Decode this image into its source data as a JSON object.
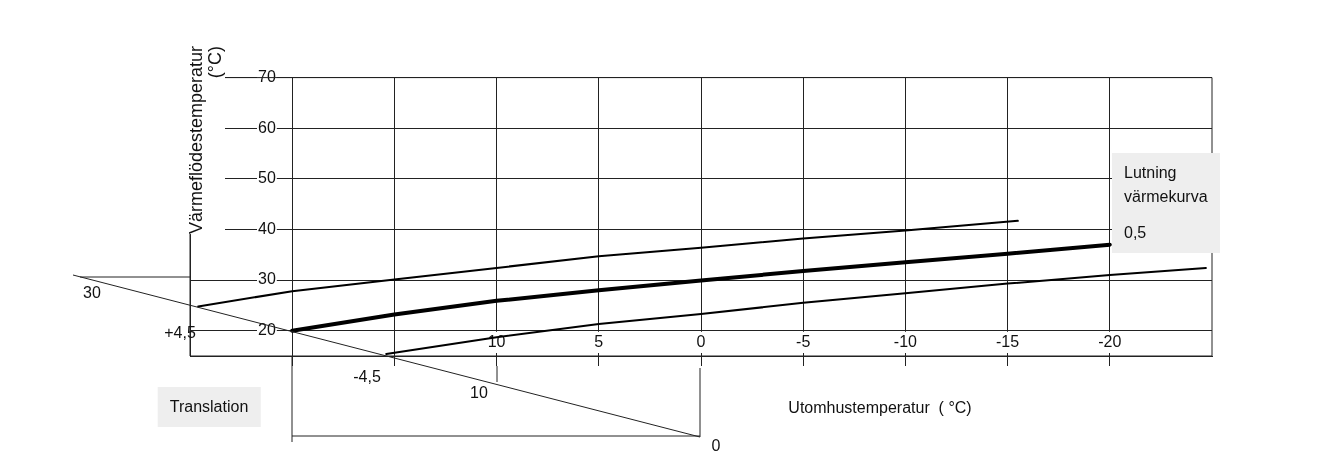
{
  "chart_data": {
    "type": "line",
    "xlabel": "Utomhustemperatur  ( °C)",
    "ylabel": "Värmeflödestemperatur\n(°C)",
    "xlim": [
      25,
      -25
    ],
    "ylim": [
      15,
      70
    ],
    "xticks": [
      {
        "value": 20,
        "label": null
      },
      {
        "value": 15,
        "label": null
      },
      10,
      5,
      0,
      -5,
      -10,
      -15,
      -20
    ],
    "yticks": [
      20,
      30,
      40,
      50,
      60,
      70
    ],
    "grid": true,
    "legend": false,
    "marker": "none",
    "line_style": "solid",
    "series": [
      {
        "color": "#000000",
        "x": [
          24.6,
          20,
          15,
          10,
          5,
          0,
          -5,
          -10,
          -15.5
        ],
        "values": [
          24.8,
          27.8,
          30.1,
          32.4,
          34.7,
          36.4,
          38.2,
          39.8,
          41.7
        ]
      },
      {
        "color": "#000000",
        "x": [
          20,
          15,
          10,
          5,
          0,
          -5,
          -10,
          -15,
          -20
        ],
        "values": [
          20,
          23.2,
          25.9,
          28.0,
          29.9,
          31.8,
          33.5,
          35.2,
          37.0
        ]
      },
      {
        "color": "#000000",
        "x": [
          15.4,
          10,
          5,
          0,
          -5,
          -10,
          -15,
          -20,
          -24.7
        ],
        "values": [
          15.4,
          18.7,
          21.3,
          23.3,
          25.5,
          27.4,
          29.3,
          31.0,
          32.4
        ]
      }
    ],
    "annotations": [
      "30",
      "+4,5",
      "-4,5",
      "10",
      "0",
      "Translation",
      "Lutning\nvärmekurva",
      "0,5"
    ]
  }
}
